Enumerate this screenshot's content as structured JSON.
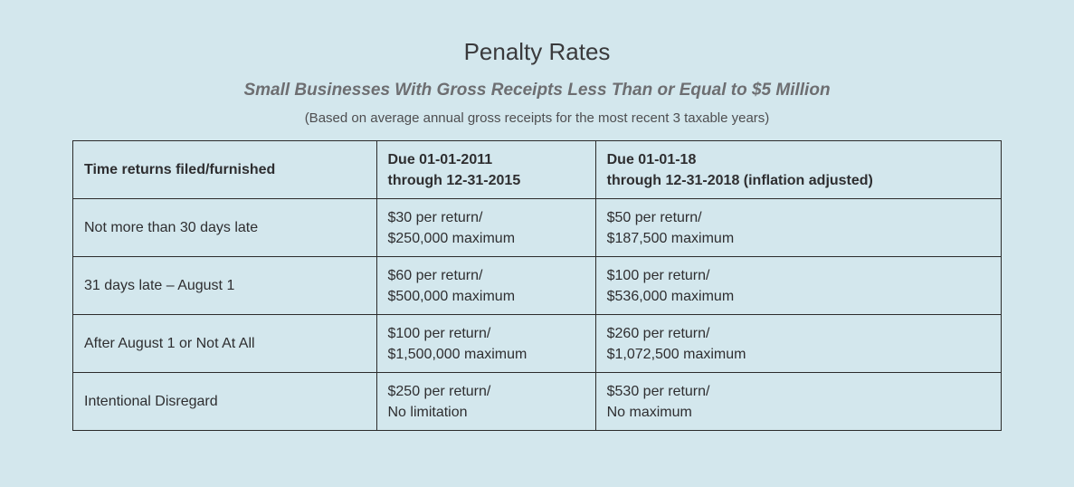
{
  "page": {
    "title": "Penalty Rates",
    "subtitle": "Small Businesses With Gross Receipts Less Than or Equal to $5 Million",
    "note": "(Based on average annual gross receipts for the most recent 3 taxable years)"
  },
  "colors": {
    "background": "#d3e7ed",
    "table_border": "#2b2b2b",
    "title_text": "#3a3a3c",
    "subtitle_text": "#6d6e71",
    "body_text": "#2e2e30"
  },
  "table": {
    "headers": [
      "Time returns filed/furnished",
      "Due 01-01-2011\nthrough 12-31-2015",
      "Due 01-01-18\nthrough 12-31-2018 (inflation adjusted)"
    ],
    "rows": [
      [
        "Not more than 30 days late",
        "$30 per return/\n$250,000 maximum",
        "$50 per return/\n$187,500 maximum"
      ],
      [
        "31 days late – August 1",
        "$60 per return/\n$500,000 maximum",
        "$100 per return/\n$536,000 maximum"
      ],
      [
        "After August 1 or Not At All",
        "$100 per return/\n$1,500,000 maximum",
        "$260 per return/\n$1,072,500 maximum"
      ],
      [
        "Intentional Disregard",
        "$250 per return/\nNo limitation",
        "$530 per return/\nNo maximum"
      ]
    ]
  }
}
